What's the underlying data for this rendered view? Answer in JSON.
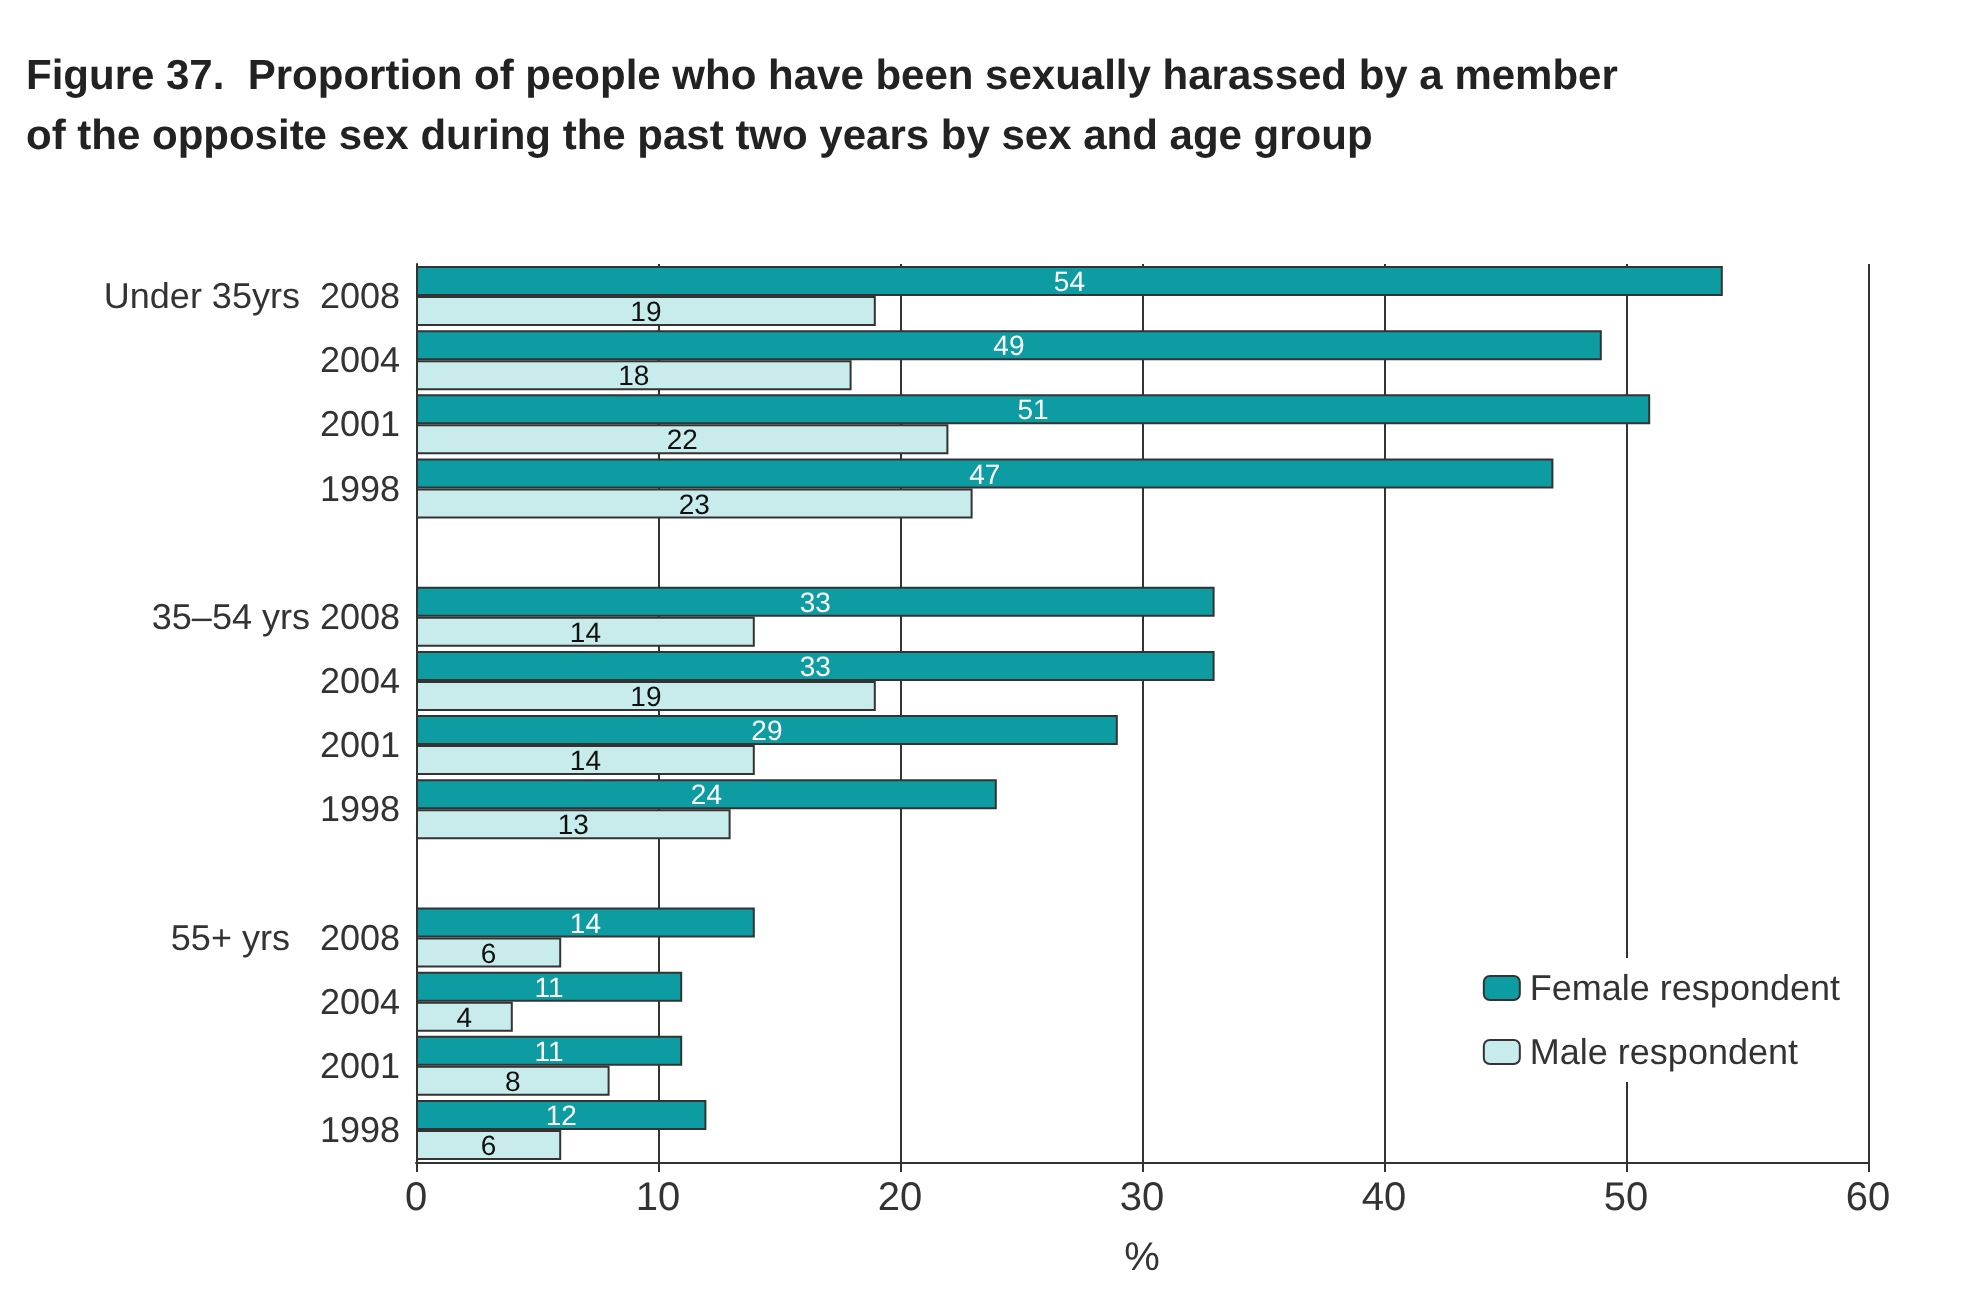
{
  "chart_data": {
    "type": "bar",
    "orientation": "horizontal",
    "title": "Figure 37.  Proportion of people who have been sexually harassed by a member\nof the opposite sex during the past two years by sex and age group",
    "categories": [
      "Under 35yrs  2008",
      "2004",
      "2001",
      "1998",
      null,
      "35–54 yrs 2008",
      "2004",
      "2001",
      "1998",
      null,
      "55+ yrs   2008",
      "2004",
      "2001",
      "1998"
    ],
    "series": [
      {
        "name": "Female respondent",
        "color": "#0e9ca3",
        "values": [
          54,
          49,
          51,
          47,
          null,
          33,
          33,
          29,
          24,
          null,
          14,
          11,
          11,
          12
        ]
      },
      {
        "name": "Male respondent",
        "color": "#c8ebeb",
        "values": [
          19,
          18,
          22,
          23,
          null,
          14,
          19,
          14,
          13,
          null,
          6,
          4,
          8,
          6
        ]
      }
    ],
    "xlabel": "%",
    "xlim": [
      0,
      60
    ],
    "xticks": [
      0,
      10,
      20,
      30,
      40,
      50,
      60
    ],
    "grid": "x",
    "legend": "bottom right",
    "data_labels": true
  }
}
